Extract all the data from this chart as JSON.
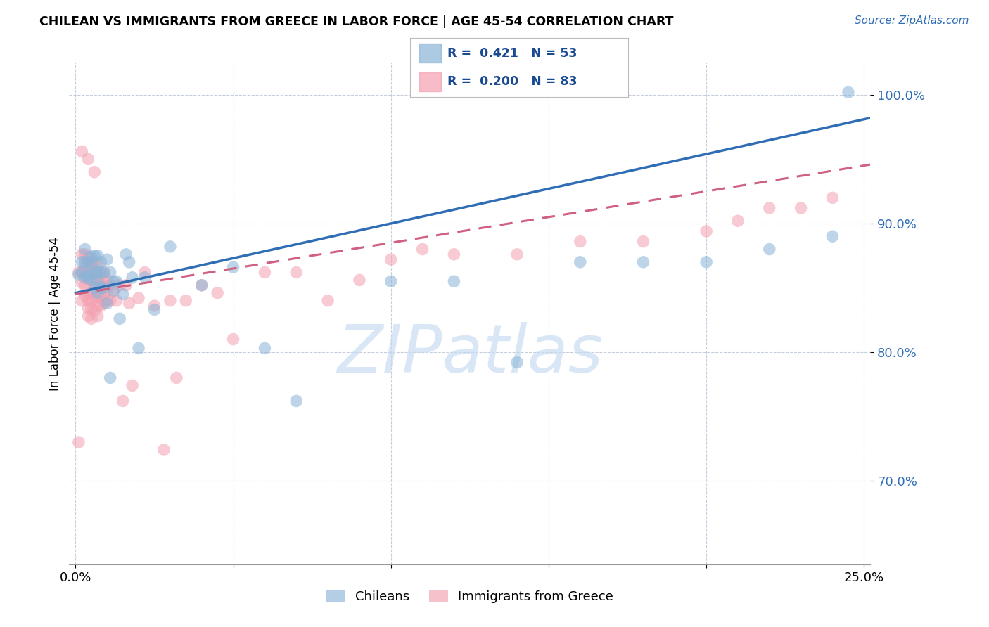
{
  "title": "CHILEAN VS IMMIGRANTS FROM GREECE IN LABOR FORCE | AGE 45-54 CORRELATION CHART",
  "source": "Source: ZipAtlas.com",
  "ylabel": "In Labor Force | Age 45-54",
  "xlim": [
    -0.002,
    0.252
  ],
  "ylim": [
    0.635,
    1.025
  ],
  "yticks": [
    0.7,
    0.8,
    0.9,
    1.0
  ],
  "ytick_labels": [
    "70.0%",
    "80.0%",
    "90.0%",
    "100.0%"
  ],
  "xticks": [
    0.0,
    0.05,
    0.1,
    0.15,
    0.2,
    0.25
  ],
  "xtick_labels": [
    "0.0%",
    "",
    "",
    "",
    "",
    "25.0%"
  ],
  "chilean_color": "#8ab4d8",
  "greece_color": "#f4a0b0",
  "chilean_line_color": "#2f6db5",
  "greece_line_color": "#d06080",
  "chilean_x": [
    0.001,
    0.002,
    0.002,
    0.003,
    0.003,
    0.003,
    0.004,
    0.004,
    0.004,
    0.005,
    0.005,
    0.005,
    0.006,
    0.006,
    0.006,
    0.007,
    0.007,
    0.007,
    0.007,
    0.008,
    0.008,
    0.008,
    0.009,
    0.009,
    0.01,
    0.01,
    0.011,
    0.011,
    0.012,
    0.012,
    0.013,
    0.014,
    0.015,
    0.016,
    0.017,
    0.018,
    0.02,
    0.022,
    0.025,
    0.03,
    0.04,
    0.05,
    0.06,
    0.07,
    0.1,
    0.12,
    0.14,
    0.16,
    0.18,
    0.2,
    0.22,
    0.24,
    0.245
  ],
  "chilean_y": [
    0.86,
    0.87,
    0.862,
    0.858,
    0.87,
    0.88,
    0.858,
    0.87,
    0.86,
    0.874,
    0.866,
    0.856,
    0.875,
    0.862,
    0.85,
    0.875,
    0.862,
    0.856,
    0.846,
    0.87,
    0.862,
    0.85,
    0.862,
    0.85,
    0.872,
    0.838,
    0.862,
    0.78,
    0.855,
    0.848,
    0.855,
    0.826,
    0.845,
    0.876,
    0.87,
    0.858,
    0.803,
    0.858,
    0.833,
    0.882,
    0.852,
    0.866,
    0.803,
    0.762,
    0.855,
    0.855,
    0.792,
    0.87,
    0.87,
    0.87,
    0.88,
    0.89,
    1.002
  ],
  "greece_x": [
    0.001,
    0.001,
    0.002,
    0.002,
    0.002,
    0.002,
    0.003,
    0.003,
    0.003,
    0.003,
    0.003,
    0.004,
    0.004,
    0.004,
    0.004,
    0.004,
    0.004,
    0.004,
    0.005,
    0.005,
    0.005,
    0.005,
    0.005,
    0.005,
    0.005,
    0.006,
    0.006,
    0.006,
    0.006,
    0.006,
    0.007,
    0.007,
    0.007,
    0.007,
    0.007,
    0.007,
    0.008,
    0.008,
    0.008,
    0.008,
    0.009,
    0.009,
    0.009,
    0.009,
    0.01,
    0.01,
    0.01,
    0.011,
    0.011,
    0.012,
    0.013,
    0.014,
    0.015,
    0.016,
    0.017,
    0.018,
    0.02,
    0.022,
    0.025,
    0.028,
    0.03,
    0.032,
    0.035,
    0.04,
    0.045,
    0.05,
    0.06,
    0.07,
    0.08,
    0.09,
    0.1,
    0.11,
    0.12,
    0.14,
    0.16,
    0.18,
    0.2,
    0.21,
    0.22,
    0.23,
    0.24,
    0.002,
    0.004,
    0.006
  ],
  "greece_y": [
    0.862,
    0.73,
    0.876,
    0.862,
    0.854,
    0.84,
    0.876,
    0.868,
    0.862,
    0.852,
    0.844,
    0.874,
    0.862,
    0.856,
    0.846,
    0.84,
    0.834,
    0.828,
    0.87,
    0.862,
    0.856,
    0.846,
    0.84,
    0.834,
    0.826,
    0.87,
    0.86,
    0.852,
    0.842,
    0.832,
    0.868,
    0.86,
    0.852,
    0.843,
    0.836,
    0.828,
    0.86,
    0.852,
    0.844,
    0.836,
    0.862,
    0.854,
    0.846,
    0.838,
    0.856,
    0.848,
    0.84,
    0.852,
    0.84,
    0.847,
    0.84,
    0.852,
    0.762,
    0.852,
    0.838,
    0.774,
    0.842,
    0.862,
    0.836,
    0.724,
    0.84,
    0.78,
    0.84,
    0.852,
    0.846,
    0.81,
    0.862,
    0.862,
    0.84,
    0.856,
    0.872,
    0.88,
    0.876,
    0.876,
    0.886,
    0.886,
    0.894,
    0.902,
    0.912,
    0.912,
    0.92,
    0.956,
    0.95,
    0.94
  ]
}
